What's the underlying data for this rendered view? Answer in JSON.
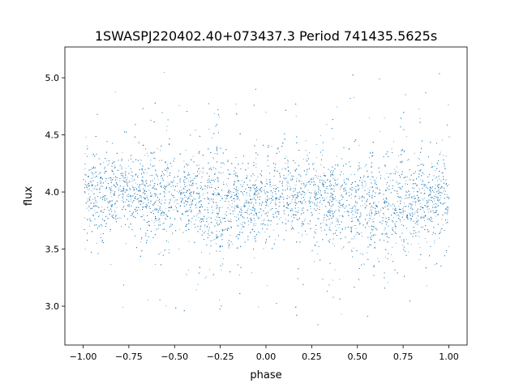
{
  "chart_data": {
    "type": "scatter",
    "title": "1SWASPJ220402.40+073437.3 Period 741435.5625s",
    "xlabel": "phase",
    "ylabel": "flux",
    "xlim": [
      -1.1,
      1.1
    ],
    "ylim": [
      2.66,
      5.27
    ],
    "xticks": [
      "−1.00",
      "−0.75",
      "−0.50",
      "−0.25",
      "0.00",
      "0.25",
      "0.50",
      "0.75",
      "1.00"
    ],
    "xtick_values": [
      -1.0,
      -0.75,
      -0.5,
      -0.25,
      0.0,
      0.25,
      0.5,
      0.75,
      1.0
    ],
    "yticks": [
      "3.0",
      "3.5",
      "4.0",
      "4.5",
      "5.0"
    ],
    "ytick_values": [
      3.0,
      3.5,
      4.0,
      4.5,
      5.0
    ],
    "grid": false,
    "point_color": "#1f77b4",
    "x_range_of_points": [
      -1.0,
      1.0
    ],
    "binned_median_flux": {
      "phase": [
        -1.0,
        -0.75,
        -0.5,
        -0.25,
        0.0,
        0.25,
        0.5,
        0.75,
        1.0
      ],
      "flux": [
        3.98,
        4.02,
        3.95,
        3.88,
        3.95,
        4.0,
        3.9,
        3.9,
        3.98
      ]
    },
    "flux_core_spread": 0.18,
    "flux_extremes": [
      2.78,
      5.15
    ]
  }
}
